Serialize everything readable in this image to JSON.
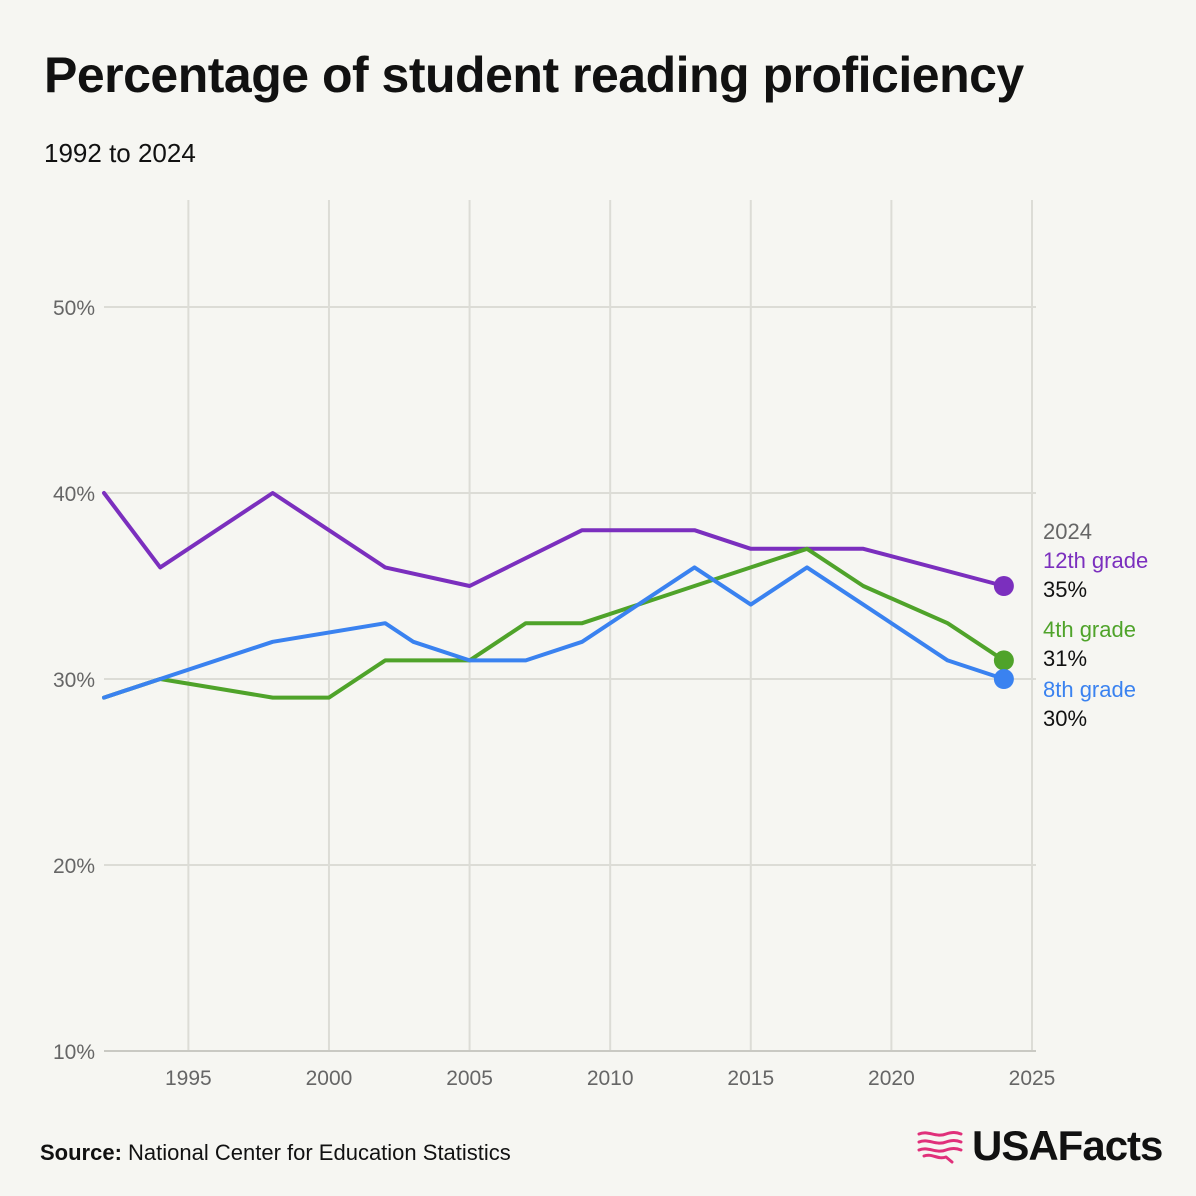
{
  "title": "Percentage of student reading proficiency",
  "subtitle": "1992 to 2024",
  "footer": {
    "source_label": "Source:",
    "source_text": "National Center for Education Statistics"
  },
  "brand": {
    "name": "USAFacts",
    "color": "#e0307a"
  },
  "end_labels": {
    "year": "2024"
  },
  "chart_data": {
    "type": "line",
    "title": "Percentage of student reading proficiency",
    "subtitle": "1992 to 2024",
    "xlim": [
      1992,
      2025
    ],
    "ylim": [
      10,
      55
    ],
    "x_ticks": [
      1995,
      2000,
      2005,
      2010,
      2015,
      2020,
      2025
    ],
    "y_ticks": [
      10,
      20,
      30,
      40,
      50
    ],
    "y_tick_labels": [
      "10%",
      "20%",
      "30%",
      "40%",
      "50%"
    ],
    "grid": true,
    "legend": "end-labels-right",
    "series": [
      {
        "name": "12th grade",
        "color": "#7b2fbe",
        "end_label": "35%",
        "points": [
          [
            1992,
            40
          ],
          [
            1994,
            36
          ],
          [
            1998,
            40
          ],
          [
            2002,
            36
          ],
          [
            2005,
            35
          ],
          [
            2009,
            38
          ],
          [
            2013,
            38
          ],
          [
            2015,
            37
          ],
          [
            2019,
            37
          ],
          [
            2024,
            35
          ]
        ]
      },
      {
        "name": "4th grade",
        "color": "#4fa32a",
        "end_label": "31%",
        "points": [
          [
            1992,
            29
          ],
          [
            1994,
            30
          ],
          [
            1998,
            29
          ],
          [
            2000,
            29
          ],
          [
            2002,
            31
          ],
          [
            2003,
            31
          ],
          [
            2005,
            31
          ],
          [
            2007,
            33
          ],
          [
            2009,
            33
          ],
          [
            2011,
            34
          ],
          [
            2013,
            35
          ],
          [
            2015,
            36
          ],
          [
            2017,
            37
          ],
          [
            2019,
            35
          ],
          [
            2022,
            33
          ],
          [
            2024,
            31
          ]
        ]
      },
      {
        "name": "8th grade",
        "color": "#3a82f0",
        "end_label": "30%",
        "points": [
          [
            1992,
            29
          ],
          [
            1994,
            30
          ],
          [
            1998,
            32
          ],
          [
            2002,
            33
          ],
          [
            2003,
            32
          ],
          [
            2005,
            31
          ],
          [
            2007,
            31
          ],
          [
            2009,
            32
          ],
          [
            2011,
            34
          ],
          [
            2013,
            36
          ],
          [
            2015,
            34
          ],
          [
            2017,
            36
          ],
          [
            2019,
            34
          ],
          [
            2022,
            31
          ],
          [
            2024,
            30
          ]
        ]
      }
    ]
  }
}
